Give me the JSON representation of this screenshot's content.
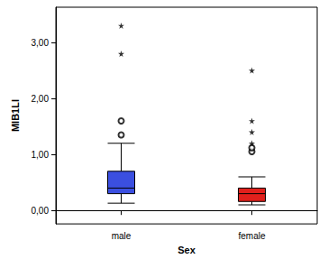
{
  "chart_data": {
    "type": "boxplot",
    "x_label": "Sex",
    "y_label": "MIB1LI",
    "categories": [
      "male",
      "female"
    ],
    "stats": [
      [
        0.13,
        0.3,
        0.4,
        0.7,
        1.2
      ],
      [
        0.1,
        0.16,
        0.3,
        0.4,
        0.6
      ]
    ],
    "outliers": [
      [
        1.35,
        1.6
      ],
      [
        1.05,
        1.12
      ]
    ],
    "extremes": [
      [
        2.8,
        3.3
      ],
      [
        1.2,
        1.4,
        1.6,
        2.5
      ]
    ],
    "colors": [
      "#3b4fe0",
      "#e0201c"
    ],
    "ylim": [
      -0.24,
      3.63
    ],
    "yticks": [
      {
        "value": 0,
        "label": "0,00"
      },
      {
        "value": 1,
        "label": "1,00"
      },
      {
        "value": 2,
        "label": "2,00"
      },
      {
        "value": 3,
        "label": "3,00"
      }
    ],
    "grid": false
  }
}
